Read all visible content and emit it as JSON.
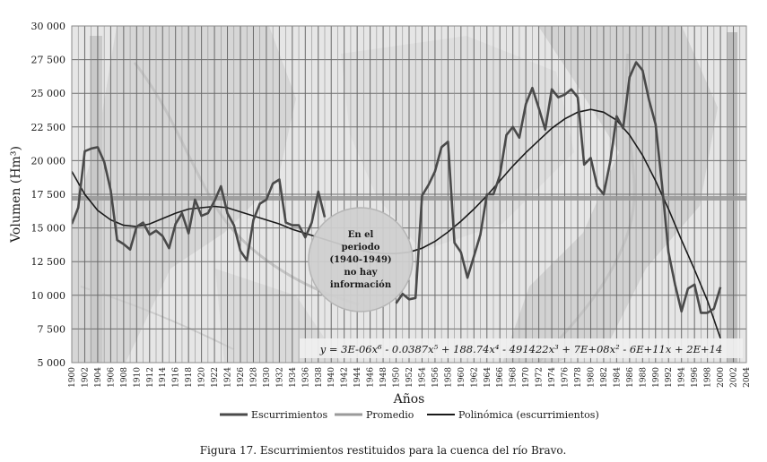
{
  "chart_data": {
    "type": "line",
    "xlabel": "Años",
    "ylabel": "Volumen (Hm³)",
    "xlim": [
      1900,
      2004
    ],
    "ylim": [
      5000,
      30000
    ],
    "y_ticks": [
      "5 000",
      "7 500",
      "10 000",
      "12 500",
      "15 000",
      "17 500",
      "20 000",
      "22 500",
      "25 000",
      "27 500",
      "30 000"
    ],
    "y_tick_values": [
      5000,
      7500,
      10000,
      12500,
      15000,
      17500,
      20000,
      22500,
      25000,
      27500,
      30000
    ],
    "x_ticks": [
      "1900",
      "1902",
      "1904",
      "1906",
      "1908",
      "1910",
      "1912",
      "1914",
      "1916",
      "1918",
      "1920",
      "1922",
      "1924",
      "1926",
      "1928",
      "1930",
      "1932",
      "1934",
      "1936",
      "1938",
      "1940",
      "1942",
      "1944",
      "1946",
      "1948",
      "1950",
      "1952",
      "1954",
      "1956",
      "1958",
      "1960",
      "1962",
      "1964",
      "1966",
      "1968",
      "1970",
      "1972",
      "1974",
      "1976",
      "1978",
      "1980",
      "1982",
      "1984",
      "1986",
      "1988",
      "1990",
      "1992",
      "1994",
      "1996",
      "1998",
      "2000",
      "2002",
      "2004"
    ],
    "grid": true,
    "background": "faded map of the Río Bravo basin (Colorado, New Mexico, Texas, United States, Mexico)",
    "legend_position": "bottom",
    "series": [
      {
        "name": "Escurrimientos",
        "color": "#4a4a4a",
        "segments": [
          {
            "x": [
              1900,
              1901,
              1902,
              1903,
              1904,
              1905,
              1906,
              1907,
              1908,
              1909,
              1910,
              1911,
              1912,
              1913,
              1914,
              1915,
              1916,
              1917,
              1918,
              1919,
              1920,
              1921,
              1922,
              1923,
              1924,
              1925,
              1926,
              1927,
              1928,
              1929,
              1930,
              1931,
              1932,
              1933,
              1934,
              1935,
              1936,
              1937,
              1938,
              1939
            ],
            "y": [
              15300,
              16500,
              20700,
              20900,
              21000,
              19900,
              17800,
              14100,
              13800,
              13400,
              15100,
              15400,
              14500,
              14800,
              14400,
              13500,
              15300,
              16100,
              14600,
              17100,
              15900,
              16100,
              17000,
              18100,
              16100,
              15200,
              13300,
              12600,
              15600,
              16800,
              17100,
              18300,
              18600,
              15400,
              15200,
              15200,
              14300,
              15400,
              17700,
              15800
            ]
          },
          {
            "x": [
              1950,
              1951,
              1952,
              1953,
              1954,
              1955,
              1956,
              1957,
              1958,
              1959,
              1960,
              1961,
              1962,
              1963,
              1964,
              1965,
              1966,
              1967,
              1968,
              1969,
              1970,
              1971,
              1972,
              1973,
              1974,
              1975,
              1976,
              1977,
              1978,
              1979,
              1980,
              1981,
              1982,
              1983,
              1984,
              1985,
              1986,
              1987,
              1988,
              1989,
              1990,
              1991,
              1992,
              1993,
              1994,
              1995,
              1996,
              1997,
              1998,
              1999,
              2000
            ],
            "y": [
              9400,
              10100,
              9700,
              9800,
              17400,
              18200,
              19200,
              21000,
              21400,
              13900,
              13200,
              11300,
              12900,
              14500,
              17500,
              17500,
              18900,
              21900,
              22500,
              21700,
              24200,
              25400,
              23900,
              22300,
              25300,
              24700,
              24900,
              25300,
              24700,
              19700,
              20200,
              18100,
              17500,
              19900,
              23300,
              22400,
              26200,
              27300,
              26700,
              24500,
              22700,
              18200,
              13200,
              10800,
              8800,
              10500,
              10800,
              8700,
              8700,
              9000,
              10600
            ]
          }
        ]
      },
      {
        "name": "Promedio",
        "color": "#9a9a9a",
        "x": [
          1900,
          2004
        ],
        "y": [
          17200,
          17200
        ]
      },
      {
        "name": "Polinómica (escurrimientos)",
        "color": "#1a1a1a",
        "x": [
          1900,
          1902,
          1904,
          1906,
          1908,
          1910,
          1912,
          1914,
          1916,
          1918,
          1920,
          1922,
          1924,
          1926,
          1928,
          1930,
          1932,
          1934,
          1936,
          1938,
          1940,
          1942,
          1944,
          1946,
          1948,
          1950,
          1952,
          1954,
          1956,
          1958,
          1960,
          1962,
          1964,
          1966,
          1968,
          1970,
          1972,
          1974,
          1976,
          1978,
          1980,
          1982,
          1984,
          1986,
          1988,
          1990,
          1992,
          1994,
          1996,
          1998,
          2000
        ],
        "y": [
          19200,
          17500,
          16300,
          15600,
          15200,
          15100,
          15300,
          15700,
          16100,
          16400,
          16500,
          16600,
          16500,
          16200,
          15900,
          15600,
          15300,
          14900,
          14600,
          14300,
          14000,
          13700,
          13400,
          13200,
          13100,
          13100,
          13200,
          13500,
          14000,
          14700,
          15500,
          16400,
          17400,
          18500,
          19600,
          20600,
          21500,
          22400,
          23100,
          23600,
          23800,
          23600,
          23000,
          21900,
          20400,
          18500,
          16400,
          14100,
          11900,
          9600,
          6800
        ]
      }
    ],
    "trendline_equation": "y = 3E-06x⁶ - 0.0387x⁵ + 188.74x⁴ - 491422x³ + 7E+08x² - 6E+11x + 2E+14",
    "annotation": [
      "En el",
      "periodo",
      "(1940-1949)",
      "no hay",
      "información"
    ]
  },
  "caption": "Figura 17. Escurrimientos restituidos para la cuenca del río Bravo."
}
